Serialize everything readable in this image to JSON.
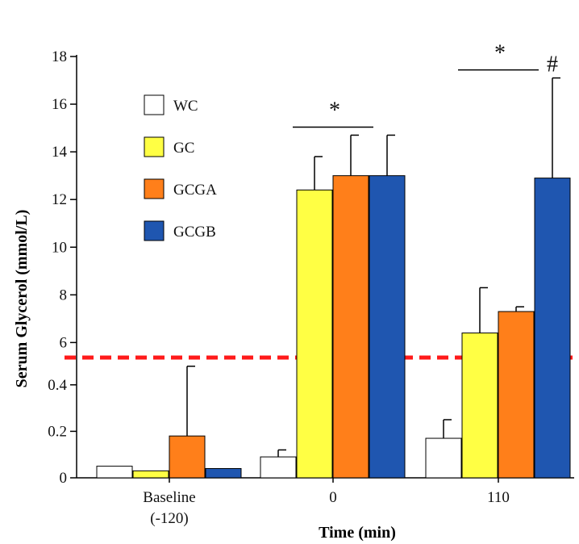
{
  "chart_data": {
    "type": "bar",
    "title": "",
    "xlabel": "Time (min)",
    "ylabel": "Serum Glycerol (mmol/L)",
    "categories": [
      {
        "line1": "Baseline",
        "line2": "(-120)"
      },
      {
        "line1": "0",
        "line2": ""
      },
      {
        "line1": "110",
        "line2": ""
      }
    ],
    "y_axis": {
      "broken": true,
      "break_marker": "red dashed line",
      "lower_segment": {
        "range": [
          0,
          0.5
        ],
        "ticks": [
          "0",
          "0.2",
          "0.4"
        ],
        "tick_values": [
          0,
          0.2,
          0.4
        ]
      },
      "upper_segment": {
        "range": [
          5.2,
          18
        ],
        "ticks": [
          "6",
          "8",
          "10",
          "12",
          "14",
          "16",
          "18"
        ],
        "tick_values": [
          6,
          8,
          10,
          12,
          14,
          16,
          18
        ]
      }
    },
    "series": [
      {
        "name": "WC",
        "color": "#ffffff",
        "values": [
          0.05,
          0.09,
          0.17
        ],
        "errors": [
          0,
          0.03,
          0.08
        ]
      },
      {
        "name": "GC",
        "color": "#ffff44",
        "values": [
          0.03,
          12.4,
          6.4
        ],
        "errors": [
          0,
          1.4,
          1.9
        ]
      },
      {
        "name": "GCGA",
        "color": "#ff7f1a",
        "values": [
          0.18,
          13.0,
          7.3
        ],
        "errors": [
          0.3,
          1.7,
          0.2
        ]
      },
      {
        "name": "GCGB",
        "color": "#1f56b0",
        "values": [
          0.04,
          13.0,
          12.9
        ],
        "errors": [
          0,
          1.7,
          4.2
        ]
      }
    ],
    "annotations": [
      {
        "text": "*",
        "over_category": 1,
        "type": "bracket"
      },
      {
        "text": "*",
        "over_category": 2,
        "type": "bracket"
      },
      {
        "text": "#",
        "category": 2,
        "series": "GCGB"
      }
    ],
    "legend": {
      "placement": "top-left",
      "entries": [
        "WC",
        "GC",
        "GCGA",
        "GCGB"
      ]
    },
    "grid": false,
    "break_line_color": "#ff1a1a"
  }
}
